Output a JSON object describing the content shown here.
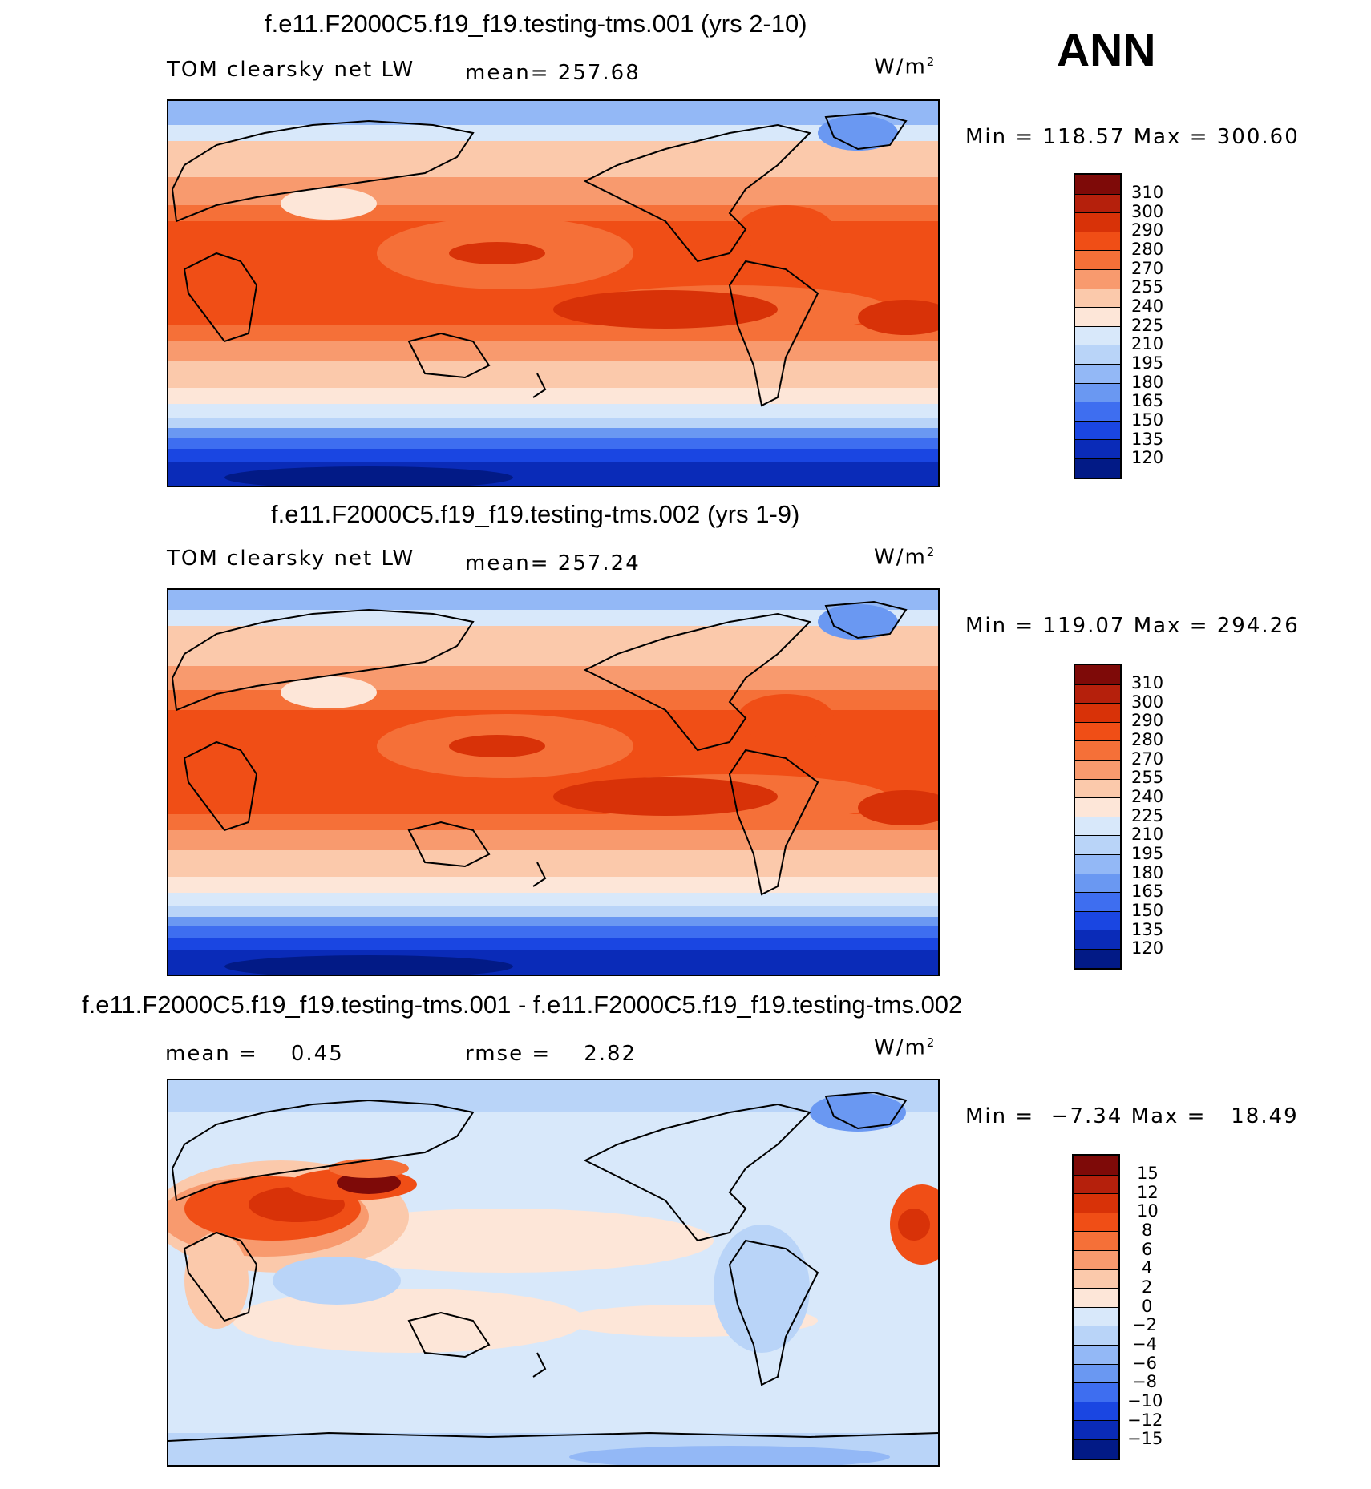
{
  "season": "ANN",
  "panels": [
    {
      "title": "f.e11.F2000C5.f19_f19.testing-tms.001 (yrs 2-10)",
      "variable": "TOM clearsky net LW",
      "stat1": "mean= 257.68",
      "stat2": "",
      "unit_base": "W/m",
      "unit_exp": "2",
      "minmax": "Min = 118.57 Max = 300.60",
      "colorbar_levels": [
        "310",
        "300",
        "290",
        "280",
        "270",
        "255",
        "240",
        "225",
        "210",
        "195",
        "180",
        "165",
        "150",
        "135",
        "120"
      ],
      "colorbar_colors": [
        "#7e0a08",
        "#b5200c",
        "#d83208",
        "#f04e16",
        "#f57038",
        "#f89a6e",
        "#fbc9ab",
        "#fde6d8",
        "#d8e8fa",
        "#b9d4f8",
        "#93b8f6",
        "#6a98f2",
        "#3e6ef0",
        "#1a46e2",
        "#0a2bb8",
        "#021a86"
      ]
    },
    {
      "title": "f.e11.F2000C5.f19_f19.testing-tms.002 (yrs 1-9)",
      "variable": "TOM clearsky net LW",
      "stat1": "mean= 257.24",
      "stat2": "",
      "unit_base": "W/m",
      "unit_exp": "2",
      "minmax": "Min = 119.07 Max = 294.26",
      "colorbar_levels": [
        "310",
        "300",
        "290",
        "280",
        "270",
        "255",
        "240",
        "225",
        "210",
        "195",
        "180",
        "165",
        "150",
        "135",
        "120"
      ],
      "colorbar_colors": [
        "#7e0a08",
        "#b5200c",
        "#d83208",
        "#f04e16",
        "#f57038",
        "#f89a6e",
        "#fbc9ab",
        "#fde6d8",
        "#d8e8fa",
        "#b9d4f8",
        "#93b8f6",
        "#6a98f2",
        "#3e6ef0",
        "#1a46e2",
        "#0a2bb8",
        "#021a86"
      ]
    },
    {
      "title": "f.e11.F2000C5.f19_f19.testing-tms.001 - f.e11.F2000C5.f19_f19.testing-tms.002",
      "variable": "mean =    0.45",
      "stat1": "rmse =    2.82",
      "stat2": "",
      "unit_base": "W/m",
      "unit_exp": "2",
      "minmax": "Min =  −7.34 Max =   18.49",
      "colorbar_levels": [
        "15",
        "12",
        "10",
        "8",
        "6",
        "4",
        "2",
        "0",
        "−2",
        "−4",
        "−6",
        "−8",
        "−10",
        "−12",
        "−15"
      ],
      "colorbar_colors": [
        "#7e0a08",
        "#b5200c",
        "#d83208",
        "#f04e16",
        "#f57038",
        "#f89a6e",
        "#fbc9ab",
        "#fde6d8",
        "#d8e8fa",
        "#b9d4f8",
        "#93b8f6",
        "#6a98f2",
        "#3e6ef0",
        "#1a46e2",
        "#0a2bb8",
        "#021a86"
      ]
    }
  ]
}
